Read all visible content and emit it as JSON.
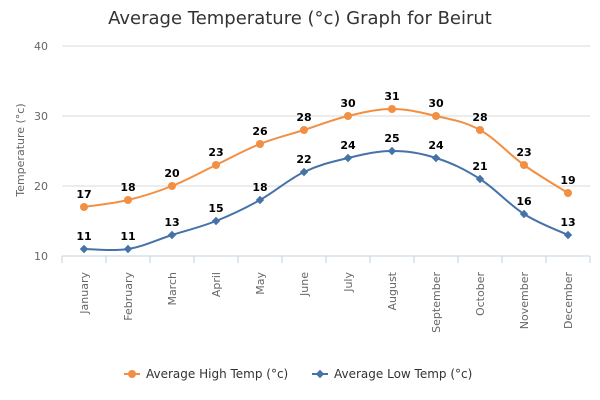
{
  "chart_data": {
    "type": "line",
    "title": "Average Temperature (°c) Graph for Beirut",
    "xlabel": "",
    "ylabel": "Temperature (°c)",
    "ylim": [
      10,
      40
    ],
    "yticks": [
      10,
      20,
      30,
      40
    ],
    "grid": true,
    "legend_position": "bottom",
    "categories": [
      "January",
      "February",
      "March",
      "April",
      "May",
      "June",
      "July",
      "August",
      "September",
      "October",
      "November",
      "December"
    ],
    "series": [
      {
        "name": "Average High Temp (°c)",
        "color": "#f28f43",
        "marker": "circle",
        "values": [
          17,
          18,
          20,
          23,
          26,
          28,
          30,
          31,
          30,
          28,
          23,
          19
        ]
      },
      {
        "name": "Average Low Temp (°c)",
        "color": "#4572a7",
        "marker": "diamond",
        "values": [
          11,
          11,
          13,
          15,
          18,
          22,
          24,
          25,
          24,
          21,
          16,
          13
        ]
      }
    ]
  }
}
